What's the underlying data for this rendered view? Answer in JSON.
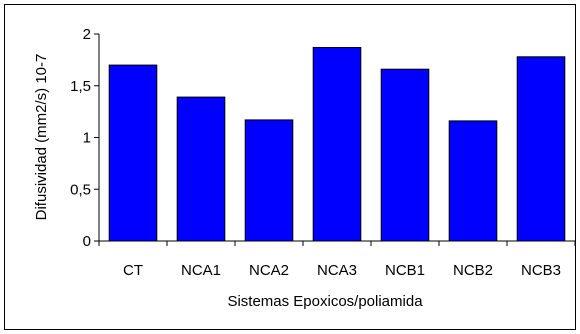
{
  "chart_data": {
    "type": "bar",
    "title": "",
    "xlabel": "Sistemas Epoxicos/poliamida",
    "ylabel": "Difusividad (mm2/s) 10-7",
    "categories": [
      "CT",
      "NCA1",
      "NCA2",
      "NCA3",
      "NCB1",
      "NCB2",
      "NCB3"
    ],
    "series": [
      {
        "values": [
          1.7,
          1.39,
          1.17,
          1.87,
          1.66,
          1.16,
          1.78
        ]
      }
    ],
    "ylim": [
      0,
      2
    ],
    "yticks": [
      0,
      0.5,
      1,
      1.5,
      2
    ],
    "ytick_labels": [
      "0",
      "0,5",
      "1",
      "1,5",
      "2"
    ],
    "grid": false,
    "legend": "none",
    "colors": {
      "bar": "#0000ff",
      "bar_edge": "#000000",
      "axis": "#000000"
    }
  }
}
